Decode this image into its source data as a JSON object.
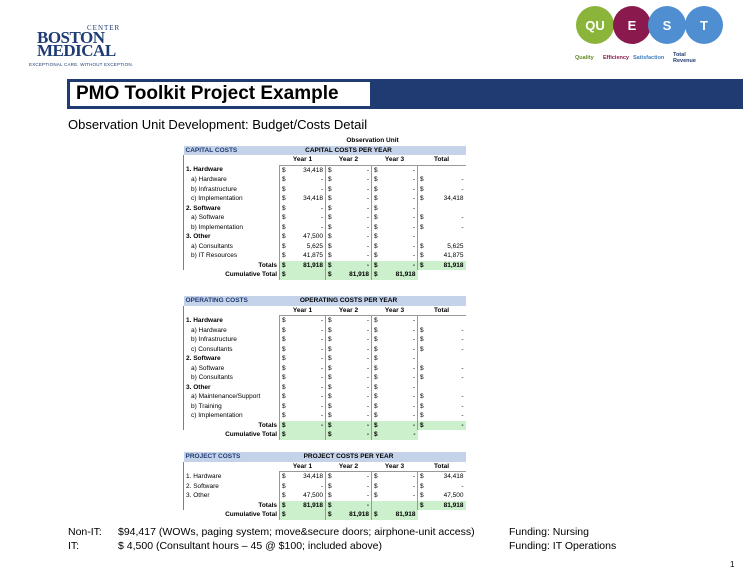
{
  "logo": {
    "small": "CENTER",
    "line1": "BOSTON",
    "line2": "MEDICAL",
    "tagline": "EXCEPTIONAL CARE. WITHOUT EXCEPTION."
  },
  "quest": {
    "circles": [
      {
        "letter": "QU",
        "label": "Quality",
        "color": "#8bb43a",
        "label_color": "#5f8a1f"
      },
      {
        "letter": "E",
        "label": "Efficiency",
        "color": "#8a1a4d",
        "label_color": "#8a1a4d"
      },
      {
        "letter": "S",
        "label": "Satisfaction",
        "color": "#4f8fd1",
        "label_color": "#3f7fc1"
      },
      {
        "letter": "T",
        "label": "Total Revenue",
        "color": "#4f8fd1",
        "label_color": "#1f3b72"
      }
    ]
  },
  "title": "PMO Toolkit Project Example",
  "subtitle": "Observation Unit Development:  Budget/Costs Detail",
  "capital": {
    "top_title": "Observation Unit",
    "header": "CAPITAL COSTS",
    "per_year": "CAPITAL COSTS PER YEAR",
    "cols": [
      "Year 1",
      "Year 2",
      "Year 3",
      "Total"
    ],
    "rows": [
      {
        "label": "1. Hardware",
        "bold": true,
        "y1": "34,418",
        "y2": "-",
        "y3": "-",
        "t": ""
      },
      {
        "label": "a) Hardware",
        "bold": false,
        "y1": "-",
        "y2": "-",
        "y3": "-",
        "t": "-"
      },
      {
        "label": "b) Infrastructure",
        "bold": false,
        "y1": "-",
        "y2": "-",
        "y3": "-",
        "t": "-"
      },
      {
        "label": "c) Implementation",
        "bold": false,
        "y1": "34,418",
        "y2": "-",
        "y3": "-",
        "t": "34,418"
      },
      {
        "label": "2. Software",
        "bold": true,
        "y1": "-",
        "y2": "-",
        "y3": "-",
        "t": ""
      },
      {
        "label": "a) Software",
        "bold": false,
        "y1": "-",
        "y2": "-",
        "y3": "-",
        "t": "-"
      },
      {
        "label": "b) Implementation",
        "bold": false,
        "y1": "-",
        "y2": "-",
        "y3": "-",
        "t": "-"
      },
      {
        "label": "3. Other",
        "bold": true,
        "y1": "47,500",
        "y2": "-",
        "y3": "-",
        "t": ""
      },
      {
        "label": "a) Consultants",
        "bold": false,
        "y1": "5,625",
        "y2": "-",
        "y3": "-",
        "t": "5,625"
      },
      {
        "label": "b) IT Resources",
        "bold": false,
        "y1": "41,875",
        "y2": "-",
        "y3": "-",
        "t": "41,875"
      }
    ],
    "totals": {
      "label": "Totals",
      "y1": "81,918",
      "y2": "-",
      "y3": "-",
      "t": "81,918"
    },
    "cumulative": {
      "label": "Cumulative Total",
      "y1": "",
      "y2": "81,918",
      "y3": "81,918"
    }
  },
  "operating": {
    "header": "OPERATING COSTS",
    "per_year": "OPERATING COSTS PER YEAR",
    "cols": [
      "Year 1",
      "Year 2",
      "Year 3",
      "Total"
    ],
    "rows": [
      {
        "label": "1. Hardware",
        "bold": true,
        "t": ""
      },
      {
        "label": "a) Hardware",
        "bold": false,
        "t": "-"
      },
      {
        "label": "b) Infrastructure",
        "bold": false,
        "t": "-"
      },
      {
        "label": "c) Consultants",
        "bold": false,
        "t": "-"
      },
      {
        "label": "2. Software",
        "bold": true,
        "t": ""
      },
      {
        "label": "a) Software",
        "bold": false,
        "t": "-"
      },
      {
        "label": "b) Consultants",
        "bold": false,
        "t": "-"
      },
      {
        "label": "3. Other",
        "bold": true,
        "t": ""
      },
      {
        "label": "a) Maintenance/Support",
        "bold": false,
        "t": "-"
      },
      {
        "label": "b) Training",
        "bold": false,
        "t": "-"
      },
      {
        "label": "c) Implementation",
        "bold": false,
        "t": "-"
      }
    ],
    "totals": {
      "label": "Totals",
      "y1": "-",
      "y2": "-",
      "y3": "-",
      "t": "-"
    },
    "cumulative": {
      "label": "Cumulative Total",
      "y1": "",
      "y2": "-",
      "y3": "-"
    }
  },
  "project": {
    "header": "PROJECT COSTS",
    "per_year": "PROJECT COSTS PER YEAR",
    "cols": [
      "Year 1",
      "Year 2",
      "Year 3",
      "Total"
    ],
    "rows": [
      {
        "label": "1. Hardware",
        "y1": "34,418",
        "y2": "-",
        "y3": "-",
        "t": "34,418"
      },
      {
        "label": "2. Software",
        "y1": "-",
        "y2": "-",
        "y3": "-",
        "t": "-"
      },
      {
        "label": "3. Other",
        "y1": "47,500",
        "y2": "-",
        "y3": "-",
        "t": "47,500"
      }
    ],
    "totals": {
      "label": "Totals",
      "y1": "81,918",
      "y2": "-",
      "y3": "",
      "t": "81,918"
    },
    "cumulative": {
      "label": "Cumulative Total",
      "y1": "",
      "y2": "81,918",
      "y3": "81,918"
    }
  },
  "footer": {
    "non_it_label": "Non-IT:",
    "non_it_text": "$94,417 (WOWs, paging system; move&secure doors; airphone-unit access)",
    "it_label": "IT:",
    "it_text": "$  4,500 (Consultant hours – 45 @ $100; included above)",
    "funding1": "Funding:  Nursing",
    "funding2": "Funding:  IT Operations"
  },
  "page_number": "1",
  "currency": "$"
}
